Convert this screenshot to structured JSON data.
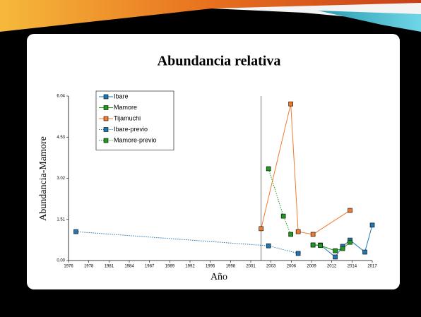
{
  "chart_data": {
    "type": "line",
    "title": "Abundancia relativa",
    "x_label": "Año",
    "y_label": "Abundancia-Mamore",
    "xlim": [
      1976,
      2017
    ],
    "ylim": [
      0,
      6.04
    ],
    "xticks": [
      {
        "value": 1976,
        "label": "1976"
      },
      {
        "value": 1978.73,
        "label": "1978"
      },
      {
        "value": 1981.47,
        "label": "1981"
      },
      {
        "value": 1984.2,
        "label": "1984"
      },
      {
        "value": 1986.93,
        "label": "1987"
      },
      {
        "value": 1989.67,
        "label": "1989"
      },
      {
        "value": 1992.4,
        "label": "1992"
      },
      {
        "value": 1995.13,
        "label": "1995"
      },
      {
        "value": 1997.87,
        "label": "1998"
      },
      {
        "value": 2000.6,
        "label": "2001"
      },
      {
        "value": 2003.33,
        "label": "2003"
      },
      {
        "value": 2006.07,
        "label": "2006"
      },
      {
        "value": 2008.8,
        "label": "2009"
      },
      {
        "value": 2011.53,
        "label": "2012"
      },
      {
        "value": 2014.27,
        "label": "2014"
      },
      {
        "value": 2017,
        "label": "2017"
      }
    ],
    "yticks": [
      {
        "value": 0,
        "label": "0.00"
      },
      1.51,
      3.02,
      4.53,
      6.04
    ],
    "vline": 2002,
    "grid": false,
    "legend": "top-left",
    "series": [
      {
        "name": "Ibare",
        "color": "#1f77b4",
        "dashed": false,
        "x": [
          2009,
          2010,
          2012,
          2013,
          2014,
          2016,
          2017
        ],
        "values": [
          0.57,
          0.57,
          0.13,
          0.52,
          0.75,
          0.31,
          1.3
        ]
      },
      {
        "name": "Mamore",
        "color": "#1e9a1e",
        "dashed": false,
        "x": [
          2009,
          2010,
          2012,
          2013,
          2014
        ],
        "values": [
          0.57,
          0.55,
          0.36,
          0.44,
          0.67
        ]
      },
      {
        "name": "Tijamuchi",
        "color": "#f07a30",
        "dashed": false,
        "x": [
          2002,
          2006,
          2007,
          2009,
          2014
        ],
        "values": [
          1.17,
          5.75,
          1.06,
          0.96,
          1.84
        ]
      },
      {
        "name": "Ibare-previo",
        "color": "#1f77b4",
        "dashed": true,
        "x": [
          1977,
          2003,
          2007
        ],
        "values": [
          1.06,
          0.54,
          0.26
        ]
      },
      {
        "name": "Mamore-previo",
        "color": "#1e9a1e",
        "dashed": true,
        "x": [
          2003,
          2005,
          2006
        ],
        "values": [
          3.37,
          1.63,
          0.96
        ]
      }
    ]
  }
}
